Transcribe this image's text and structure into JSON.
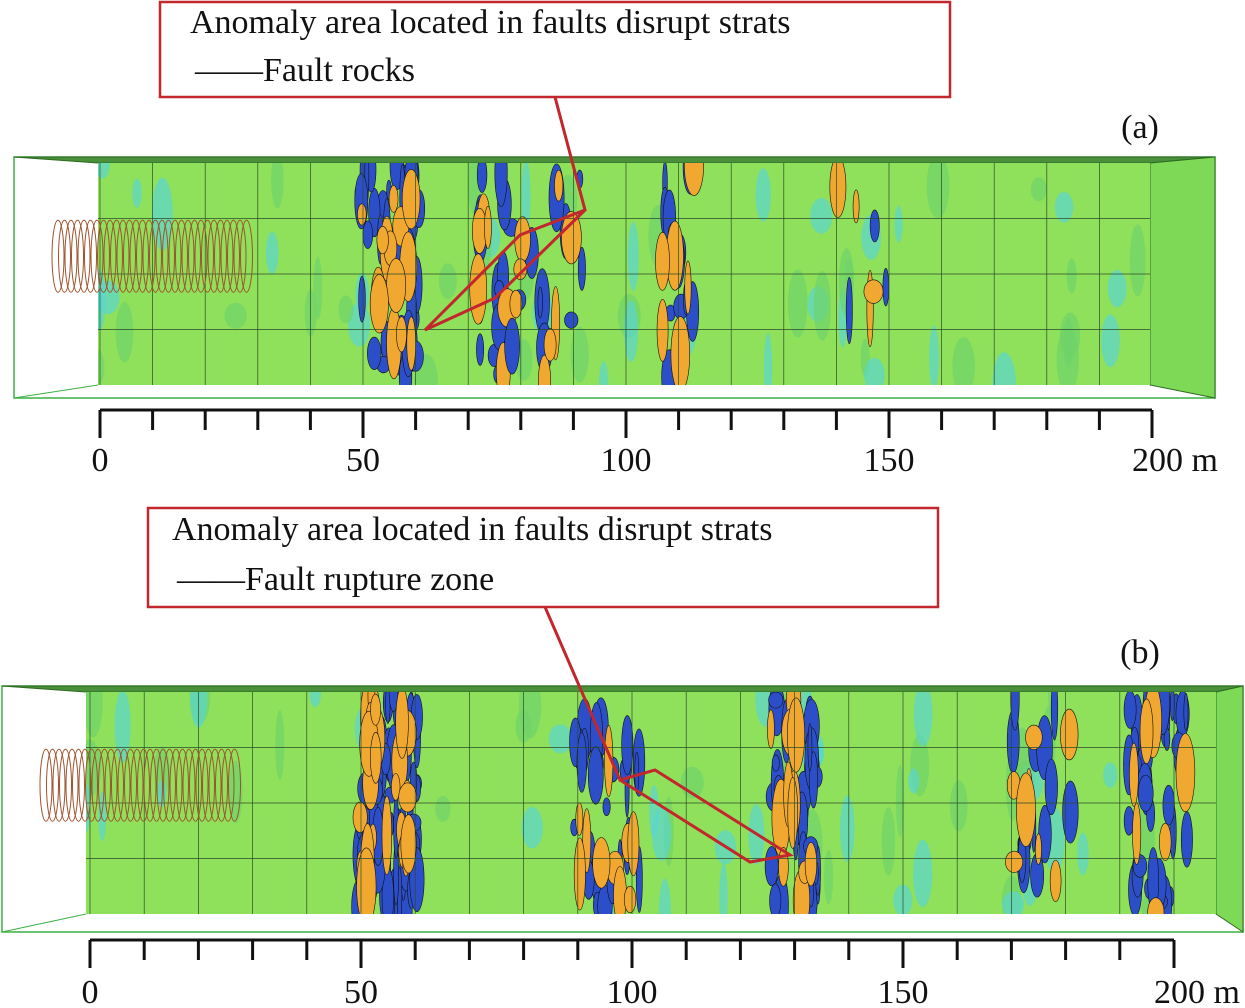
{
  "panels": [
    {
      "label": "(a)",
      "callout": [
        "Anomaly area located in faults disrupt strats",
        "——Fault rocks"
      ],
      "scale_labels": [
        "0",
        "50",
        "100",
        "150",
        "200 m"
      ]
    },
    {
      "label": "(b)",
      "callout": [
        "Anomaly area located in faults disrupt strats",
        "——Fault rupture zone"
      ],
      "scale_labels": [
        "0",
        "50",
        "100",
        "150",
        "200 m"
      ]
    }
  ]
}
